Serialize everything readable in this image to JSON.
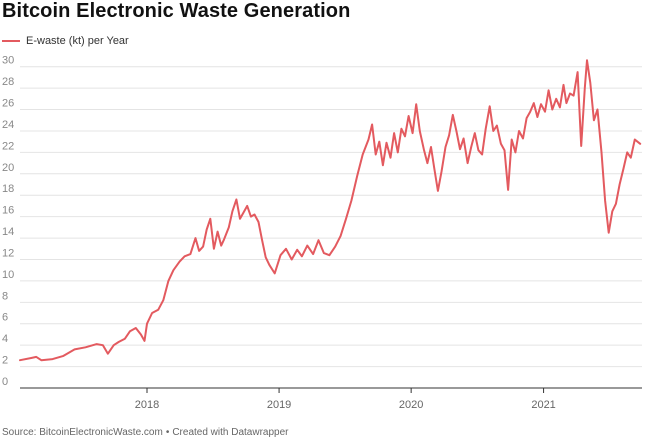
{
  "chart_data": {
    "type": "line",
    "title": "Bitcoin Electronic Waste Generation",
    "legend_position": "top-left",
    "grid": true,
    "ylim": [
      0,
      31
    ],
    "yticks": [
      0,
      2,
      4,
      6,
      8,
      10,
      12,
      14,
      16,
      18,
      20,
      22,
      24,
      26,
      28,
      30
    ],
    "xlim": [
      "2017-01-15",
      "2021-09-30"
    ],
    "xticks": [
      {
        "label": "2018",
        "date": "2018-01-01"
      },
      {
        "label": "2019",
        "date": "2019-01-01"
      },
      {
        "label": "2020",
        "date": "2020-01-01"
      },
      {
        "label": "2021",
        "date": "2021-01-01"
      }
    ],
    "series": [
      {
        "name": "E-waste (kt) per Year",
        "color": "#e35a5f",
        "points": [
          [
            "2017-01-15",
            2.6
          ],
          [
            "2017-02-15",
            2.8
          ],
          [
            "2017-03-01",
            2.9
          ],
          [
            "2017-03-15",
            2.6
          ],
          [
            "2017-04-15",
            2.7
          ],
          [
            "2017-05-15",
            3.0
          ],
          [
            "2017-06-15",
            3.6
          ],
          [
            "2017-07-15",
            3.8
          ],
          [
            "2017-08-15",
            4.1
          ],
          [
            "2017-09-01",
            4.0
          ],
          [
            "2017-09-15",
            3.2
          ],
          [
            "2017-10-01",
            4.0
          ],
          [
            "2017-10-15",
            4.3
          ],
          [
            "2017-11-01",
            4.6
          ],
          [
            "2017-11-15",
            5.3
          ],
          [
            "2017-12-01",
            5.6
          ],
          [
            "2017-12-15",
            5.0
          ],
          [
            "2017-12-25",
            4.4
          ],
          [
            "2018-01-01",
            6.0
          ],
          [
            "2018-01-15",
            7.0
          ],
          [
            "2018-02-01",
            7.3
          ],
          [
            "2018-02-15",
            8.2
          ],
          [
            "2018-03-01",
            10.0
          ],
          [
            "2018-03-15",
            11.0
          ],
          [
            "2018-04-01",
            11.8
          ],
          [
            "2018-04-15",
            12.3
          ],
          [
            "2018-05-01",
            12.5
          ],
          [
            "2018-05-15",
            14.0
          ],
          [
            "2018-05-25",
            12.8
          ],
          [
            "2018-06-05",
            13.2
          ],
          [
            "2018-06-15",
            14.8
          ],
          [
            "2018-06-25",
            15.8
          ],
          [
            "2018-07-05",
            13.0
          ],
          [
            "2018-07-15",
            14.6
          ],
          [
            "2018-07-25",
            13.3
          ],
          [
            "2018-08-01",
            13.8
          ],
          [
            "2018-08-15",
            15.0
          ],
          [
            "2018-08-25",
            16.5
          ],
          [
            "2018-09-05",
            17.6
          ],
          [
            "2018-09-15",
            15.8
          ],
          [
            "2018-09-25",
            16.4
          ],
          [
            "2018-10-05",
            17.0
          ],
          [
            "2018-10-15",
            16.0
          ],
          [
            "2018-10-25",
            16.2
          ],
          [
            "2018-11-05",
            15.5
          ],
          [
            "2018-11-15",
            13.8
          ],
          [
            "2018-11-25",
            12.2
          ],
          [
            "2018-12-05",
            11.5
          ],
          [
            "2018-12-20",
            10.7
          ],
          [
            "2019-01-05",
            12.4
          ],
          [
            "2019-01-20",
            13.0
          ],
          [
            "2019-02-05",
            12.0
          ],
          [
            "2019-02-20",
            12.9
          ],
          [
            "2019-03-05",
            12.3
          ],
          [
            "2019-03-20",
            13.3
          ],
          [
            "2019-04-05",
            12.5
          ],
          [
            "2019-04-20",
            13.8
          ],
          [
            "2019-05-05",
            12.6
          ],
          [
            "2019-05-20",
            12.4
          ],
          [
            "2019-06-05",
            13.2
          ],
          [
            "2019-06-20",
            14.2
          ],
          [
            "2019-07-05",
            15.8
          ],
          [
            "2019-07-20",
            17.5
          ],
          [
            "2019-08-05",
            19.8
          ],
          [
            "2019-08-20",
            21.8
          ],
          [
            "2019-09-05",
            23.2
          ],
          [
            "2019-09-15",
            24.6
          ],
          [
            "2019-09-25",
            21.8
          ],
          [
            "2019-10-05",
            23.0
          ],
          [
            "2019-10-15",
            20.8
          ],
          [
            "2019-10-25",
            22.9
          ],
          [
            "2019-11-05",
            21.5
          ],
          [
            "2019-11-15",
            23.8
          ],
          [
            "2019-11-25",
            22.0
          ],
          [
            "2019-12-05",
            24.2
          ],
          [
            "2019-12-15",
            23.5
          ],
          [
            "2019-12-25",
            25.4
          ],
          [
            "2020-01-05",
            23.8
          ],
          [
            "2020-01-15",
            26.5
          ],
          [
            "2020-01-25",
            24.0
          ],
          [
            "2020-02-05",
            22.3
          ],
          [
            "2020-02-15",
            21.0
          ],
          [
            "2020-02-25",
            22.5
          ],
          [
            "2020-03-05",
            20.5
          ],
          [
            "2020-03-15",
            18.4
          ],
          [
            "2020-03-25",
            20.2
          ],
          [
            "2020-04-05",
            22.5
          ],
          [
            "2020-04-15",
            23.6
          ],
          [
            "2020-04-25",
            25.5
          ],
          [
            "2020-05-05",
            24.0
          ],
          [
            "2020-05-15",
            22.3
          ],
          [
            "2020-05-25",
            23.3
          ],
          [
            "2020-06-05",
            21.0
          ],
          [
            "2020-06-15",
            22.5
          ],
          [
            "2020-06-25",
            23.8
          ],
          [
            "2020-07-05",
            22.2
          ],
          [
            "2020-07-15",
            21.8
          ],
          [
            "2020-07-25",
            24.2
          ],
          [
            "2020-08-05",
            26.3
          ],
          [
            "2020-08-15",
            24.0
          ],
          [
            "2020-08-25",
            24.5
          ],
          [
            "2020-09-05",
            22.8
          ],
          [
            "2020-09-15",
            22.2
          ],
          [
            "2020-09-25",
            18.5
          ],
          [
            "2020-10-05",
            23.2
          ],
          [
            "2020-10-15",
            22.0
          ],
          [
            "2020-10-25",
            24.0
          ],
          [
            "2020-11-05",
            23.3
          ],
          [
            "2020-11-15",
            25.2
          ],
          [
            "2020-11-25",
            25.8
          ],
          [
            "2020-12-05",
            26.6
          ],
          [
            "2020-12-15",
            25.3
          ],
          [
            "2020-12-25",
            26.5
          ],
          [
            "2021-01-05",
            25.8
          ],
          [
            "2021-01-15",
            27.8
          ],
          [
            "2021-01-25",
            26.0
          ],
          [
            "2021-02-05",
            27.0
          ],
          [
            "2021-02-15",
            26.2
          ],
          [
            "2021-02-25",
            28.3
          ],
          [
            "2021-03-05",
            26.6
          ],
          [
            "2021-03-15",
            27.5
          ],
          [
            "2021-03-25",
            27.3
          ],
          [
            "2021-04-05",
            29.5
          ],
          [
            "2021-04-15",
            22.6
          ],
          [
            "2021-04-25",
            28.0
          ],
          [
            "2021-05-01",
            30.6
          ],
          [
            "2021-05-10",
            28.5
          ],
          [
            "2021-05-20",
            25.0
          ],
          [
            "2021-05-30",
            26.0
          ],
          [
            "2021-06-10",
            22.0
          ],
          [
            "2021-06-20",
            17.5
          ],
          [
            "2021-06-30",
            14.5
          ],
          [
            "2021-07-10",
            16.5
          ],
          [
            "2021-07-20",
            17.2
          ],
          [
            "2021-07-30",
            19.0
          ],
          [
            "2021-08-10",
            20.5
          ],
          [
            "2021-08-20",
            22.0
          ],
          [
            "2021-08-30",
            21.5
          ],
          [
            "2021-09-10",
            23.2
          ],
          [
            "2021-09-25",
            22.8
          ]
        ]
      }
    ]
  },
  "source": {
    "text": "Source: BitcoinElectronicWaste.com",
    "separator": "•",
    "credit": "Created with Datawrapper"
  }
}
